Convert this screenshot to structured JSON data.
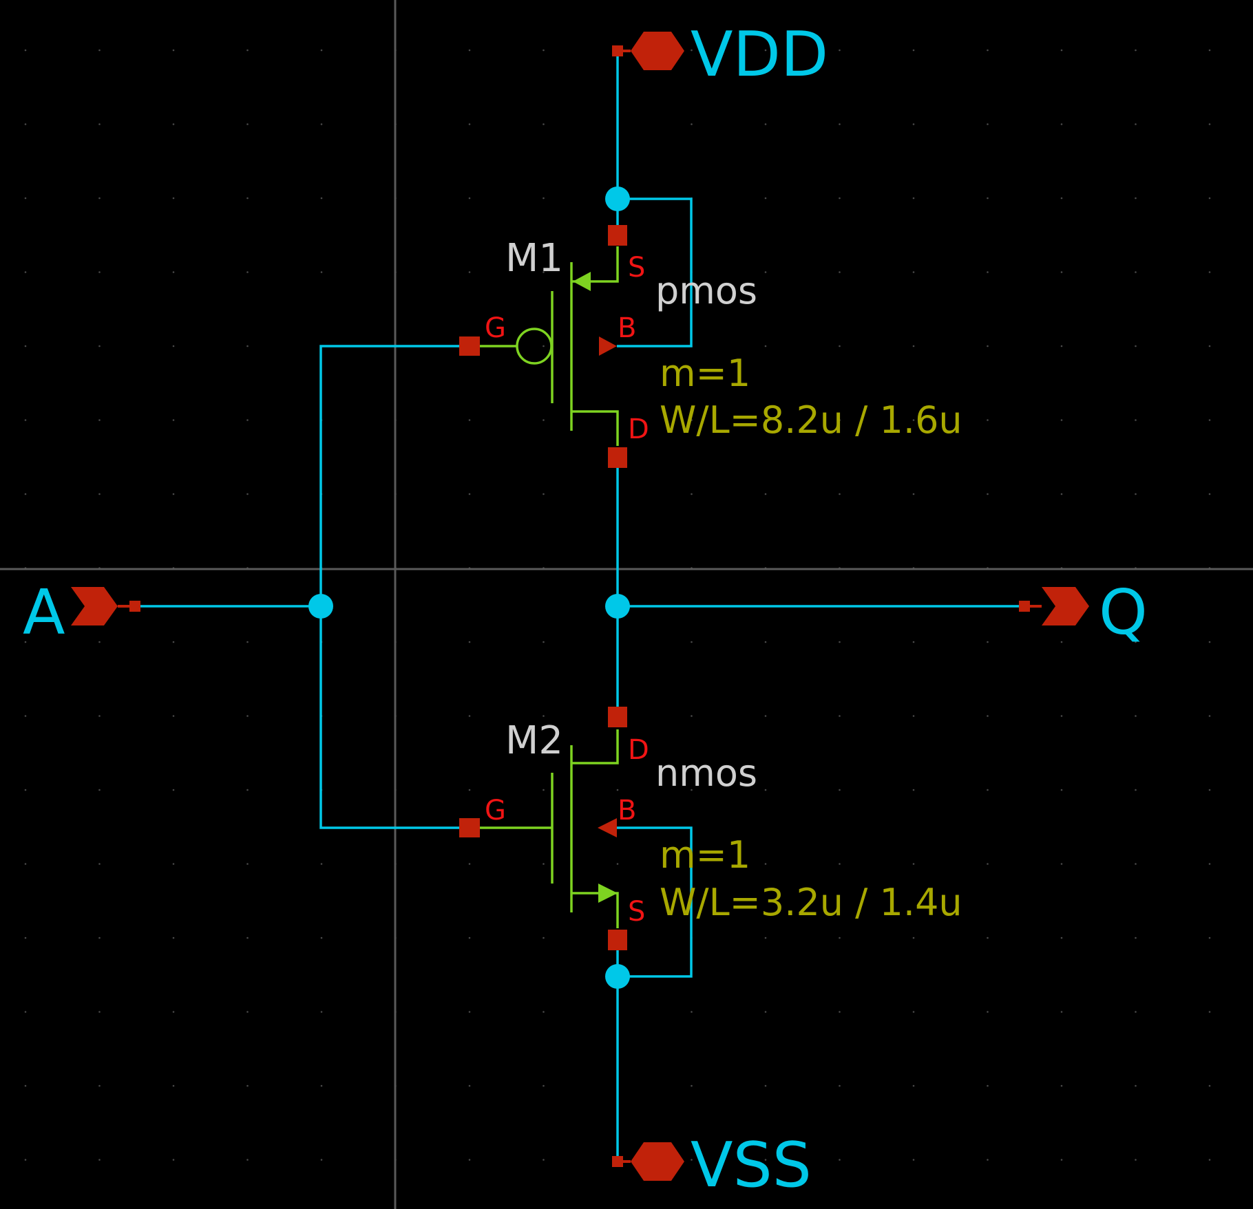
{
  "ports": {
    "vdd": "VDD",
    "vss": "VSS",
    "input": "A",
    "output": "Q"
  },
  "transistors": [
    {
      "name": "M1",
      "type": "pmos",
      "multiplier": "m=1",
      "size": "W/L=8.2u / 1.6u",
      "pins": {
        "gate": "G",
        "source": "S",
        "drain": "D",
        "bulk": "B"
      }
    },
    {
      "name": "M2",
      "type": "nmos",
      "multiplier": "m=1",
      "size": "W/L=3.2u / 1.4u",
      "pins": {
        "gate": "G",
        "source": "S",
        "drain": "D",
        "bulk": "B"
      }
    }
  ],
  "colors": {
    "background": "#000000",
    "wire": "#00c8e8",
    "device": "#7ed321",
    "pin": "#c1220a",
    "pin_label": "#f01414",
    "device_label": "#d0d0d0",
    "parameter": "#a8a800",
    "axis": "#5a5a5a"
  }
}
